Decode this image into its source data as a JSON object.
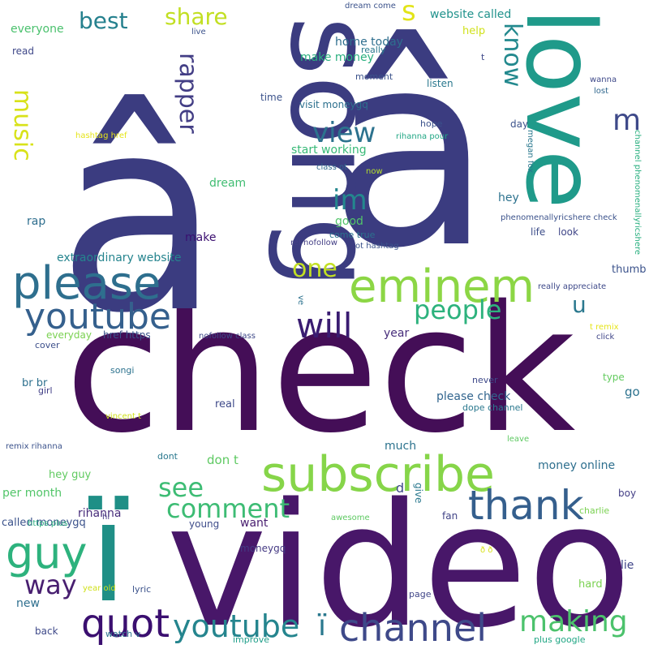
{
  "words": [
    {
      "text": "check",
      "color": "#440e57"
    },
    {
      "text": "â",
      "color": "#3b3c80"
    },
    {
      "text": "â",
      "color": "#3b3c80"
    },
    {
      "text": "video",
      "color": "#481769"
    },
    {
      "text": "ï",
      "color": "#1f8f86"
    },
    {
      "text": "song",
      "color": "#3b3c80"
    },
    {
      "text": "love",
      "color": "#1f9a8a"
    },
    {
      "text": "subscribe",
      "color": "#86d549"
    },
    {
      "text": "please",
      "color": "#2e6f8e"
    },
    {
      "text": "eminem",
      "color": "#8cd645"
    },
    {
      "text": "youtube",
      "color": "#35608d"
    },
    {
      "text": "thank",
      "color": "#355f8d"
    },
    {
      "text": "guy",
      "color": "#2db27d"
    },
    {
      "text": "channel",
      "color": "#3e4989"
    },
    {
      "text": "quot",
      "color": "#3b0f70"
    },
    {
      "text": "youtube",
      "color": "#25858e"
    },
    {
      "text": "ï",
      "color": "#2a788e"
    },
    {
      "text": "will",
      "color": "#3a1c71"
    },
    {
      "text": "people",
      "color": "#2db27d"
    },
    {
      "text": "comment",
      "color": "#3dbc74"
    },
    {
      "text": "making",
      "color": "#4cc26c"
    },
    {
      "text": "music",
      "color": "#d8e219"
    },
    {
      "text": "rapper",
      "color": "#433e85"
    },
    {
      "text": "view",
      "color": "#2c728e"
    },
    {
      "text": "im",
      "color": "#24878e"
    },
    {
      "text": "one",
      "color": "#c2df23"
    },
    {
      "text": "see",
      "color": "#3dbc74"
    },
    {
      "text": "way",
      "color": "#481f70"
    },
    {
      "text": "best",
      "color": "#26818e"
    },
    {
      "text": "share",
      "color": "#c2df23"
    },
    {
      "text": "know",
      "color": "#23898e"
    },
    {
      "text": "m",
      "color": "#3e4989"
    },
    {
      "text": "s",
      "color": "#e2e418"
    },
    {
      "text": "u",
      "color": "#2a788e"
    },
    {
      "text": "make money",
      "color": "#2ab07f"
    },
    {
      "text": "website called",
      "color": "#20928c"
    },
    {
      "text": "everyone",
      "color": "#4ac16d"
    },
    {
      "text": "home today",
      "color": "#2e6e8e"
    },
    {
      "text": "help",
      "color": "#d0e11c"
    },
    {
      "text": "read",
      "color": "#3f4889"
    },
    {
      "text": "start working",
      "color": "#38b977"
    },
    {
      "text": "extraordinary website",
      "color": "#25848e"
    },
    {
      "text": "dream",
      "color": "#40bd72"
    },
    {
      "text": "rap",
      "color": "#2e6e8e"
    },
    {
      "text": "good",
      "color": "#52c569"
    },
    {
      "text": "make",
      "color": "#3b0f70"
    },
    {
      "text": "hey",
      "color": "#2c728e"
    },
    {
      "text": "life",
      "color": "#3d4e8a"
    },
    {
      "text": "look",
      "color": "#404688"
    },
    {
      "text": "thumb",
      "color": "#3b528b"
    },
    {
      "text": "year",
      "color": "#472d7b"
    },
    {
      "text": "everyday",
      "color": "#7ad151"
    },
    {
      "text": "cover",
      "color": "#3c4f8a"
    },
    {
      "text": "br br",
      "color": "#2d708e"
    },
    {
      "text": "girl",
      "color": "#424086"
    },
    {
      "text": "please check",
      "color": "#32658e"
    },
    {
      "text": "go",
      "color": "#2c728e"
    },
    {
      "text": "real",
      "color": "#3e4989"
    },
    {
      "text": "type",
      "color": "#63cb5f"
    },
    {
      "text": "don t",
      "color": "#5ec962"
    },
    {
      "text": "much",
      "color": "#2c738e"
    },
    {
      "text": "money online",
      "color": "#2e6f8e"
    },
    {
      "text": "hey guy",
      "color": "#60ca60"
    },
    {
      "text": "per month",
      "color": "#52c569"
    },
    {
      "text": "rihanna",
      "color": "#472c7a"
    },
    {
      "text": "want",
      "color": "#481d6f"
    },
    {
      "text": "called moneygq",
      "color": "#3b528b"
    },
    {
      "text": "young",
      "color": "#3e4c8a"
    },
    {
      "text": "moneygq",
      "color": "#443983"
    },
    {
      "text": "fan",
      "color": "#414487"
    },
    {
      "text": "lie",
      "color": "#404588"
    },
    {
      "text": "hard",
      "color": "#7ad151"
    },
    {
      "text": "new",
      "color": "#2e6f8e"
    },
    {
      "text": "page",
      "color": "#404688"
    },
    {
      "text": "back",
      "color": "#3e4989"
    },
    {
      "text": "watch v",
      "color": "#2c728e"
    },
    {
      "text": "improve",
      "color": "#1f9e89"
    },
    {
      "text": "plus google",
      "color": "#22a785"
    },
    {
      "text": "lyric",
      "color": "#3b528b"
    },
    {
      "text": "year old",
      "color": "#d0e11c"
    },
    {
      "text": "d",
      "color": "#3e4989"
    },
    {
      "text": "give",
      "color": "#2a788e"
    },
    {
      "text": "boy",
      "color": "#433e85"
    },
    {
      "text": "charlie",
      "color": "#7ad151"
    },
    {
      "text": "awesome",
      "color": "#5ec962"
    },
    {
      "text": "ð ð",
      "color": "#d8e219"
    },
    {
      "text": "hi",
      "color": "#453882"
    },
    {
      "text": "https plus",
      "color": "#29af7f"
    },
    {
      "text": "remix rihanna",
      "color": "#3b528b"
    },
    {
      "text": "dont",
      "color": "#2a788e"
    },
    {
      "text": "leave",
      "color": "#5ec962"
    },
    {
      "text": "vincent t",
      "color": "#d0e11c"
    },
    {
      "text": "songi",
      "color": "#2c728e"
    },
    {
      "text": "never",
      "color": "#3e4989"
    },
    {
      "text": "dope channel",
      "color": "#2a788e"
    },
    {
      "text": "href https",
      "color": "#3b528b"
    },
    {
      "text": "nofollow class",
      "color": "#3e4989"
    },
    {
      "text": "t remix",
      "color": "#e5e419"
    },
    {
      "text": "click",
      "color": "#404688"
    },
    {
      "text": "ve",
      "color": "#2c728e"
    },
    {
      "text": "really appreciate",
      "color": "#3e4989"
    },
    {
      "text": "rel nofollow",
      "color": "#433e85"
    },
    {
      "text": "ot hashtag",
      "color": "#3b528b"
    },
    {
      "text": "come true",
      "color": "#2c728e"
    },
    {
      "text": "phenomenallyricshere check",
      "color": "#3b528b"
    },
    {
      "text": "now",
      "color": "#b5de2b"
    },
    {
      "text": "class ot",
      "color": "#31688e"
    },
    {
      "text": "megan fox",
      "color": "#2a788e"
    },
    {
      "text": "channel phenomenallyricshere",
      "color": "#29af7f"
    },
    {
      "text": "hashtag href",
      "color": "#e5e419"
    },
    {
      "text": "rihanna pour",
      "color": "#22a785"
    },
    {
      "text": "hope",
      "color": "#3b528b"
    },
    {
      "text": "day",
      "color": "#3b528b"
    },
    {
      "text": "visit moneygq",
      "color": "#2d708e"
    },
    {
      "text": "time",
      "color": "#3b528b"
    },
    {
      "text": "moment",
      "color": "#3b528b"
    },
    {
      "text": "listen",
      "color": "#2a788e"
    },
    {
      "text": "wanna",
      "color": "#3e4989"
    },
    {
      "text": "lost",
      "color": "#31688e"
    },
    {
      "text": "really",
      "color": "#2a788e"
    },
    {
      "text": "t",
      "color": "#3e4989"
    },
    {
      "text": "live",
      "color": "#3b528b"
    },
    {
      "text": "dream come",
      "color": "#3b528b"
    }
  ]
}
